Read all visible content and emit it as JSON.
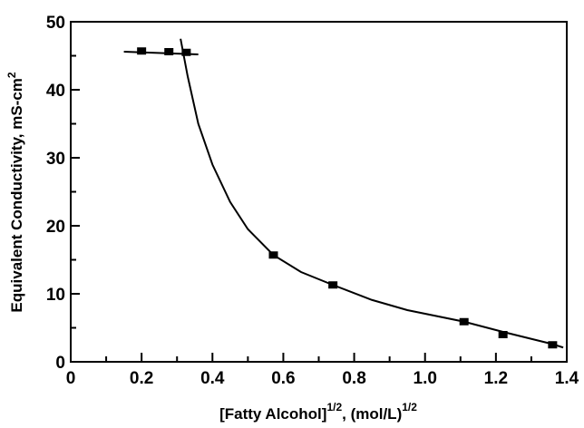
{
  "chart_data": {
    "type": "scatter",
    "xlabel": [
      "[Fatty Alcohol]",
      "1/2",
      ", (mol/L)",
      "1/2"
    ],
    "ylabel": [
      "Equivalent Conductivity, mS-cm",
      "2"
    ],
    "xlim": [
      0,
      1.4
    ],
    "ylim": [
      0,
      50
    ],
    "xticks": [
      0,
      0.2,
      0.4,
      0.6,
      0.8,
      {
        "value": 1,
        "label": "1.0"
      },
      1.2,
      1.4
    ],
    "xminor": [
      0.1,
      0.3,
      0.5,
      0.7,
      0.9,
      1.1,
      1.3
    ],
    "yticks": [
      0,
      10,
      20,
      30,
      40,
      50
    ],
    "yminor": [
      5,
      15,
      25,
      35,
      45
    ],
    "color": "#000000",
    "series": [
      {
        "x": [
          0.2,
          0.277,
          0.326,
          0.572,
          0.74,
          1.11,
          1.22,
          1.36
        ],
        "values": [
          45.7,
          45.6,
          45.5,
          15.7,
          11.3,
          5.9,
          4.0,
          2.5
        ]
      }
    ],
    "lines": [
      {
        "x": [
          0.15,
          0.36
        ],
        "values": [
          45.6,
          45.2
        ]
      },
      {
        "x": [
          0.31,
          0.33,
          0.36,
          0.4,
          0.45,
          0.5,
          0.572,
          0.65,
          0.74,
          0.85,
          0.95,
          1.11,
          1.22,
          1.36,
          1.39
        ],
        "values": [
          47.5,
          42,
          35,
          29,
          23.5,
          19.5,
          15.7,
          13.2,
          11.3,
          9.1,
          7.6,
          5.9,
          4.4,
          2.6,
          2.1
        ]
      }
    ]
  }
}
